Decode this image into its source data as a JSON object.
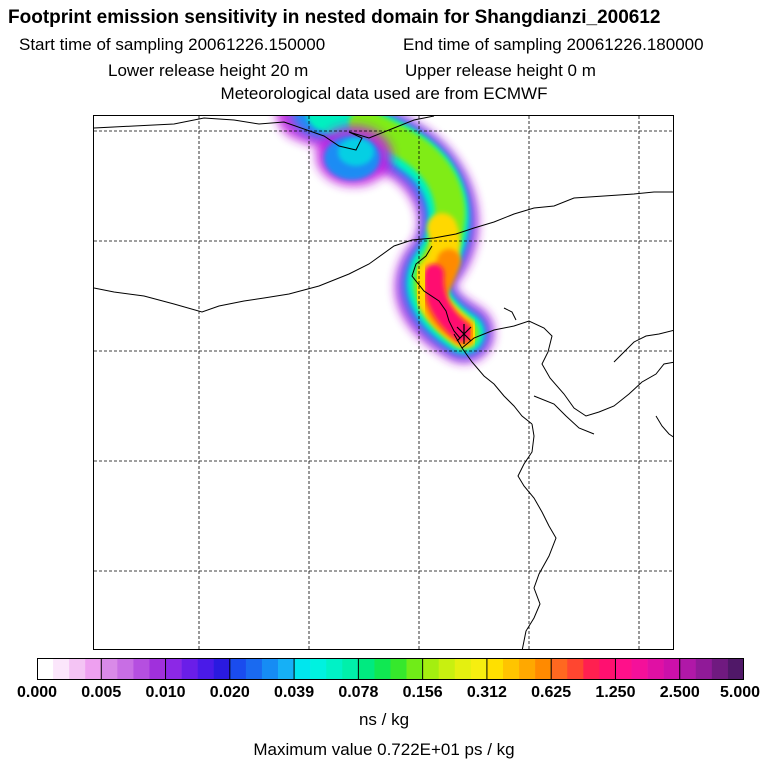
{
  "header": {
    "title": "Footprint emission sensitivity in nested domain for Shangdianzi_200612",
    "start_time": "Start time of sampling 20061226.150000",
    "end_time": "End time of sampling 20061226.180000",
    "lower_release": "Lower release height   20 m",
    "upper_release": "Upper release height    0 m",
    "met_data": "Meteorological data used are from ECMWF"
  },
  "colorbar": {
    "ticks": [
      "0.000",
      "0.005",
      "0.010",
      "0.020",
      "0.039",
      "0.078",
      "0.156",
      "0.312",
      "0.625",
      "1.250",
      "2.500",
      "5.000"
    ],
    "colors": [
      "#ffffff",
      "#fbe6fb",
      "#f4c4f4",
      "#eea0f0",
      "#d98ae8",
      "#c86ee4",
      "#b54fe0",
      "#a030dc",
      "#8c28e6",
      "#6a1ee8",
      "#4a1ae8",
      "#2a1ae0",
      "#1a4cee",
      "#1a6af0",
      "#168cf4",
      "#16b0f6",
      "#00e6ee",
      "#00f2e0",
      "#00f2c6",
      "#00f0aa",
      "#00ea80",
      "#10e852",
      "#36e82c",
      "#70ec18",
      "#a4ee10",
      "#c8f010",
      "#e4f010",
      "#f6ee10",
      "#ffe000",
      "#ffc400",
      "#ffa800",
      "#ff8a00",
      "#ff6820",
      "#ff4630",
      "#ff2050",
      "#ff1070",
      "#ff108a",
      "#f4109a",
      "#e010a4",
      "#cc10aa",
      "#b018a8",
      "#901a98",
      "#701a80",
      "#501868"
    ],
    "units": "ns / kg"
  },
  "footer": {
    "max_value": "Maximum value  0.722E+01 ps / kg"
  }
}
